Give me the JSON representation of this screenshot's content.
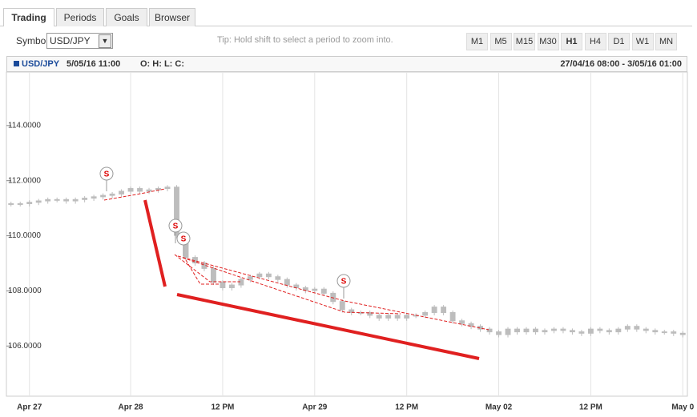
{
  "tabs": [
    "Trading",
    "Periods",
    "Goals",
    "Browser"
  ],
  "toolbar": {
    "symbol_label": "Symbol",
    "symbol_value": "USD/JPY",
    "tip": "Tip: Hold shift to select a period to zoom into.",
    "periods": [
      "M1",
      "M5",
      "M15",
      "M30",
      "H1",
      "H4",
      "D1",
      "W1",
      "MN"
    ],
    "active_period": "H1"
  },
  "panel": {
    "symbol": "USD/JPY",
    "time": "5/05/16 11:00",
    "ohlc": "O: H: L: C:",
    "range": "27/04/16 08:00 - 3/05/16 01:00"
  },
  "signal_label": "S",
  "chart_data": {
    "type": "candlestick",
    "color": "#bdbdbd",
    "categories": [
      null,
      null,
      "Apr 27",
      null,
      null,
      null,
      null,
      null,
      null,
      null,
      null,
      null,
      null,
      "Apr 28",
      null,
      null,
      null,
      null,
      null,
      null,
      null,
      null,
      null,
      "12 PM",
      null,
      null,
      null,
      null,
      null,
      null,
      null,
      null,
      null,
      "Apr 29",
      null,
      null,
      null,
      null,
      null,
      null,
      null,
      null,
      null,
      "12 PM",
      null,
      null,
      null,
      null,
      null,
      null,
      null,
      null,
      null,
      "May 02",
      null,
      null,
      null,
      null,
      null,
      null,
      null,
      null,
      null,
      "12 PM",
      null,
      null,
      null,
      null,
      null,
      null,
      null,
      null,
      null,
      "May 0"
    ],
    "values": [
      111.15,
      111.15,
      111.2,
      111.25,
      111.3,
      111.3,
      111.25,
      111.3,
      111.35,
      111.4,
      111.45,
      111.5,
      111.6,
      111.7,
      111.6,
      111.65,
      111.7,
      111.75,
      110.0,
      109.2,
      109.0,
      108.8,
      108.3,
      108.1,
      108.2,
      108.4,
      108.5,
      108.6,
      108.5,
      108.4,
      108.2,
      108.1,
      108.0,
      108.05,
      107.9,
      107.6,
      107.3,
      107.2,
      107.2,
      107.1,
      107.0,
      107.1,
      107.0,
      107.1,
      107.1,
      107.2,
      107.4,
      107.2,
      106.9,
      106.8,
      106.7,
      106.6,
      106.5,
      106.4,
      106.6,
      106.5,
      106.6,
      106.5,
      106.55,
      106.6,
      106.55,
      106.5,
      106.45,
      106.6,
      106.55,
      106.5,
      106.6,
      106.7,
      106.6,
      106.55,
      106.5,
      106.5,
      106.45,
      106.4
    ],
    "ylim": [
      104.18,
      115.94
    ],
    "yticks": [
      {
        "value": 106,
        "label": "106.0000"
      },
      {
        "value": 108,
        "label": "108.0000"
      },
      {
        "value": 110,
        "label": "110.0000"
      },
      {
        "value": 112,
        "label": "112.0000"
      },
      {
        "value": 114,
        "label": "114.0000"
      }
    ]
  }
}
